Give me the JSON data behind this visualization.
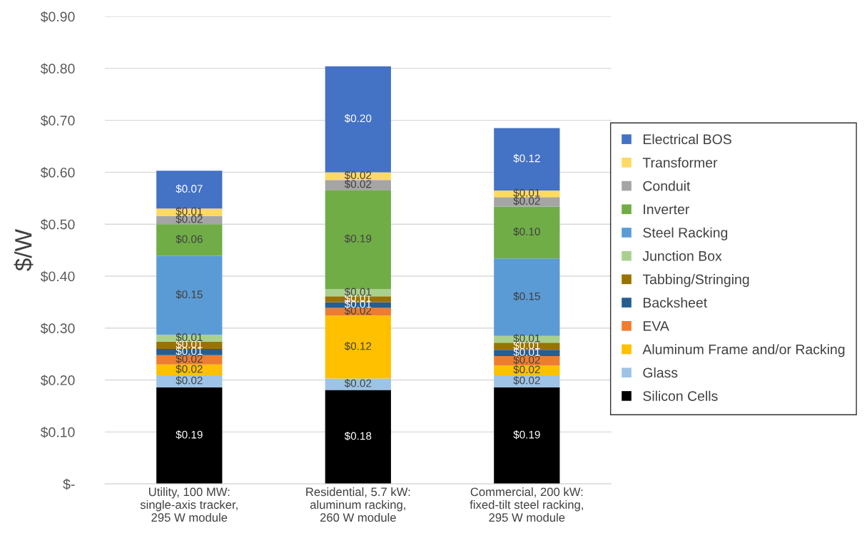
{
  "chart_data": {
    "type": "bar",
    "stacked": true,
    "ylabel": "$/W",
    "categories": [
      "Utility, 100 MW:\nsingle-axis tracker,\n295 W module",
      "Residential, 5.7 kW:\naluminum racking,\n260 W module",
      "Commercial, 200 kW:\nfixed-tilt steel racking,\n295 W module"
    ],
    "series": [
      {
        "name": "Silicon Cells",
        "color": "#000000",
        "values": [
          0.186,
          0.181,
          0.186
        ],
        "value_labels": [
          "$0.19",
          "$0.18",
          "$0.19"
        ]
      },
      {
        "name": "Glass",
        "color": "#9dc3e6",
        "values": [
          0.023,
          0.022,
          0.023
        ],
        "value_labels": [
          "$0.02",
          "$0.02",
          "$0.02"
        ]
      },
      {
        "name": "Aluminum Frame and/or Racking",
        "color": "#ffc000",
        "values": [
          0.021,
          0.121,
          0.019
        ],
        "value_labels": [
          "$0.02",
          "$0.12",
          "$0.02"
        ]
      },
      {
        "name": "EVA",
        "color": "#ed7d31",
        "values": [
          0.018,
          0.015,
          0.018
        ],
        "value_labels": [
          "$0.02",
          "$0.02",
          "$0.02"
        ]
      },
      {
        "name": "Backsheet",
        "color": "#255e91",
        "values": [
          0.012,
          0.011,
          0.012
        ],
        "value_labels": [
          "$0.01",
          "$0.01",
          "$0.01"
        ]
      },
      {
        "name": "Tabbing/Stringing",
        "color": "#997300",
        "values": [
          0.014,
          0.011,
          0.014
        ],
        "value_labels": [
          "$0.01",
          "$0.01",
          "$0.01"
        ]
      },
      {
        "name": "Junction Box",
        "color": "#a9d18e",
        "values": [
          0.013,
          0.014,
          0.013
        ],
        "value_labels": [
          "$0.01",
          "$0.01",
          "$0.01"
        ]
      },
      {
        "name": "Steel Racking",
        "color": "#5b9bd5",
        "values": [
          0.152,
          0,
          0.149
        ],
        "value_labels": [
          "$0.15",
          null,
          "$0.15"
        ]
      },
      {
        "name": "Inverter",
        "color": "#70ad47",
        "values": [
          0.061,
          0.191,
          0.1
        ],
        "value_labels": [
          "$0.06",
          "$0.19",
          "$0.10"
        ]
      },
      {
        "name": "Conduit",
        "color": "#a5a5a5",
        "values": [
          0.016,
          0.019,
          0.018
        ],
        "value_labels": [
          "$0.02",
          "$0.02",
          "$0.02"
        ]
      },
      {
        "name": "Transformer",
        "color": "#ffd966",
        "values": [
          0.014,
          0.015,
          0.013
        ],
        "value_labels": [
          "$0.01",
          "$0.02",
          "$0.01"
        ]
      },
      {
        "name": "Electrical BOS",
        "color": "#4472c4",
        "values": [
          0.073,
          0.204,
          0.12
        ],
        "value_labels": [
          "$0.07",
          "$0.20",
          "$0.12"
        ]
      }
    ],
    "ylim": [
      0,
      0.9
    ],
    "yticks": [
      {
        "value": 0,
        "label": "$-"
      },
      {
        "value": 0.1,
        "label": "$0.10"
      },
      {
        "value": 0.2,
        "label": "$0.20"
      },
      {
        "value": 0.3,
        "label": "$0.30"
      },
      {
        "value": 0.4,
        "label": "$0.40"
      },
      {
        "value": 0.5,
        "label": "$0.50"
      },
      {
        "value": 0.6,
        "label": "$0.60"
      },
      {
        "value": 0.7,
        "label": "$0.70"
      },
      {
        "value": 0.8,
        "label": "$0.80"
      },
      {
        "value": 0.9,
        "label": "$0.90"
      }
    ],
    "grid": "y",
    "legend": "right"
  }
}
